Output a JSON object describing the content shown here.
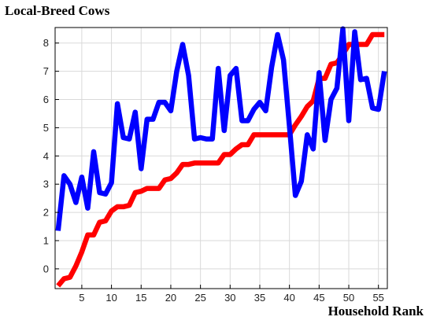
{
  "chart_data": {
    "type": "line",
    "title": "Local-Breed Cows",
    "xlabel": "Household Rank",
    "ylabel": "",
    "xlim": [
      0.5,
      56.5
    ],
    "ylim": [
      -0.7,
      8.55
    ],
    "xticks": [
      5,
      10,
      15,
      20,
      25,
      30,
      35,
      40,
      45,
      50,
      55
    ],
    "yticks": [
      0,
      1,
      2,
      3,
      4,
      5,
      6,
      7,
      8
    ],
    "grid": true,
    "x": [
      1,
      2,
      3,
      4,
      5,
      6,
      7,
      8,
      9,
      10,
      11,
      12,
      13,
      14,
      15,
      16,
      17,
      18,
      19,
      20,
      21,
      22,
      23,
      24,
      25,
      26,
      27,
      28,
      29,
      30,
      31,
      32,
      33,
      34,
      35,
      36,
      37,
      38,
      39,
      40,
      41,
      42,
      43,
      44,
      45,
      46,
      47,
      48,
      49,
      50,
      51,
      52,
      53,
      54,
      55,
      56
    ],
    "series": [
      {
        "name": "",
        "color": "#0000ff",
        "values": [
          1.35,
          3.3,
          3.0,
          2.35,
          3.25,
          2.15,
          4.15,
          2.7,
          2.65,
          3.05,
          5.85,
          4.65,
          4.6,
          5.55,
          3.55,
          5.3,
          5.3,
          5.9,
          5.9,
          5.6,
          7.0,
          7.95,
          6.85,
          4.6,
          4.65,
          4.6,
          4.6,
          7.1,
          4.9,
          6.85,
          7.1,
          5.25,
          5.25,
          5.65,
          5.9,
          5.6,
          7.15,
          8.3,
          7.4,
          5.05,
          2.6,
          3.1,
          4.75,
          4.25,
          6.95,
          4.55,
          6.0,
          6.4,
          8.5,
          5.25,
          8.4,
          6.7,
          6.75,
          5.7,
          5.65,
          7.0
        ]
      },
      {
        "name": "",
        "color": "#ff0000",
        "values": [
          -0.6,
          -0.35,
          -0.3,
          0.1,
          0.6,
          1.2,
          1.2,
          1.65,
          1.7,
          2.05,
          2.2,
          2.2,
          2.25,
          2.7,
          2.75,
          2.85,
          2.85,
          2.85,
          3.15,
          3.2,
          3.4,
          3.7,
          3.7,
          3.75,
          3.75,
          3.75,
          3.75,
          3.75,
          4.05,
          4.05,
          4.25,
          4.4,
          4.4,
          4.75,
          4.75,
          4.75,
          4.75,
          4.75,
          4.75,
          4.75,
          5.1,
          5.4,
          5.75,
          5.95,
          6.75,
          6.75,
          7.25,
          7.3,
          7.6,
          7.95,
          7.95,
          7.95,
          7.95,
          8.3,
          8.3,
          8.3
        ]
      }
    ]
  }
}
